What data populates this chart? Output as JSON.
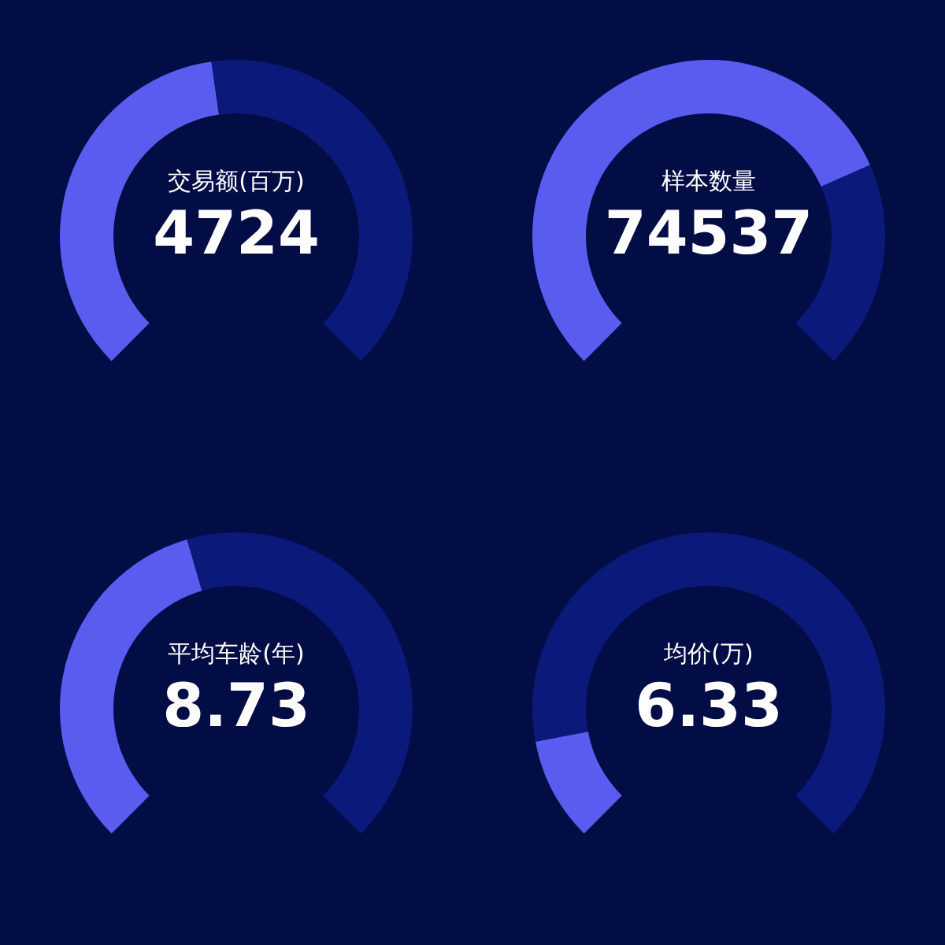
{
  "chart_data": [
    {
      "type": "donut",
      "title": "交易额(百万)",
      "annotations": [
        "4724"
      ],
      "categories": [
        null,
        null
      ],
      "values": [
        47,
        53
      ],
      "colors": [
        "#5a5cf0",
        "#0b1a7a"
      ]
    },
    {
      "type": "donut",
      "title": "样本数量",
      "annotations": [
        "74537"
      ],
      "categories": [
        null,
        null
      ],
      "values": [
        74.5,
        25.5
      ],
      "colors": [
        "#5a5cf0",
        "#0b1a7a"
      ]
    },
    {
      "type": "donut",
      "title": "平均车龄(年)",
      "annotations": [
        "8.73"
      ],
      "categories": [
        null,
        null
      ],
      "values": [
        44,
        56
      ],
      "colors": [
        "#5a5cf0",
        "#0b1a7a"
      ]
    },
    {
      "type": "donut",
      "title": "均价(万)",
      "annotations": [
        "6.33"
      ],
      "categories": [
        null,
        null
      ],
      "values": [
        12.7,
        87.3
      ],
      "colors": [
        "#5a5cf0",
        "#0b1a7a"
      ]
    }
  ]
}
